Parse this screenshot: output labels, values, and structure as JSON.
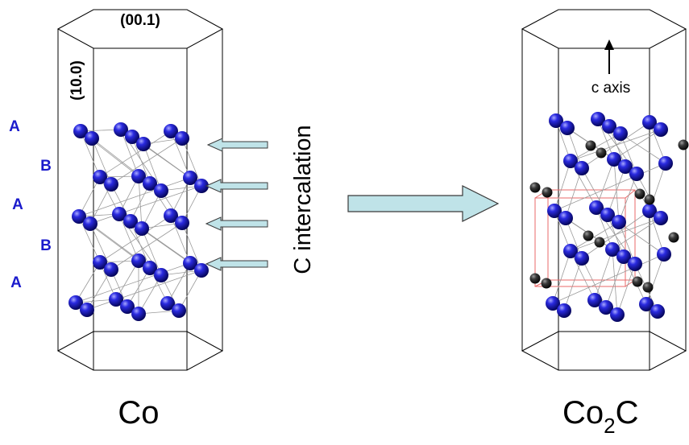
{
  "left_structure": {
    "facet_top": "(00.1)",
    "facet_side": "(10.0)",
    "stacking": [
      "A",
      "B",
      "A",
      "B",
      "A"
    ],
    "caption": "Co"
  },
  "process": {
    "label": "C intercalation"
  },
  "right_structure": {
    "axis_label": "c axis",
    "caption_main": "Co",
    "caption_sub": "2",
    "caption_tail": "C"
  },
  "colors": {
    "co_atom": "#1a1acc",
    "c_atom": "#333333",
    "arrow_fill": "#bfe3e8",
    "stack_label": "#1a1acc",
    "unit_cell": "#e86a6a"
  },
  "icons": {
    "atom": "sphere",
    "intercalation_arrow": "left-arrow",
    "transform_arrow": "right-arrow"
  }
}
